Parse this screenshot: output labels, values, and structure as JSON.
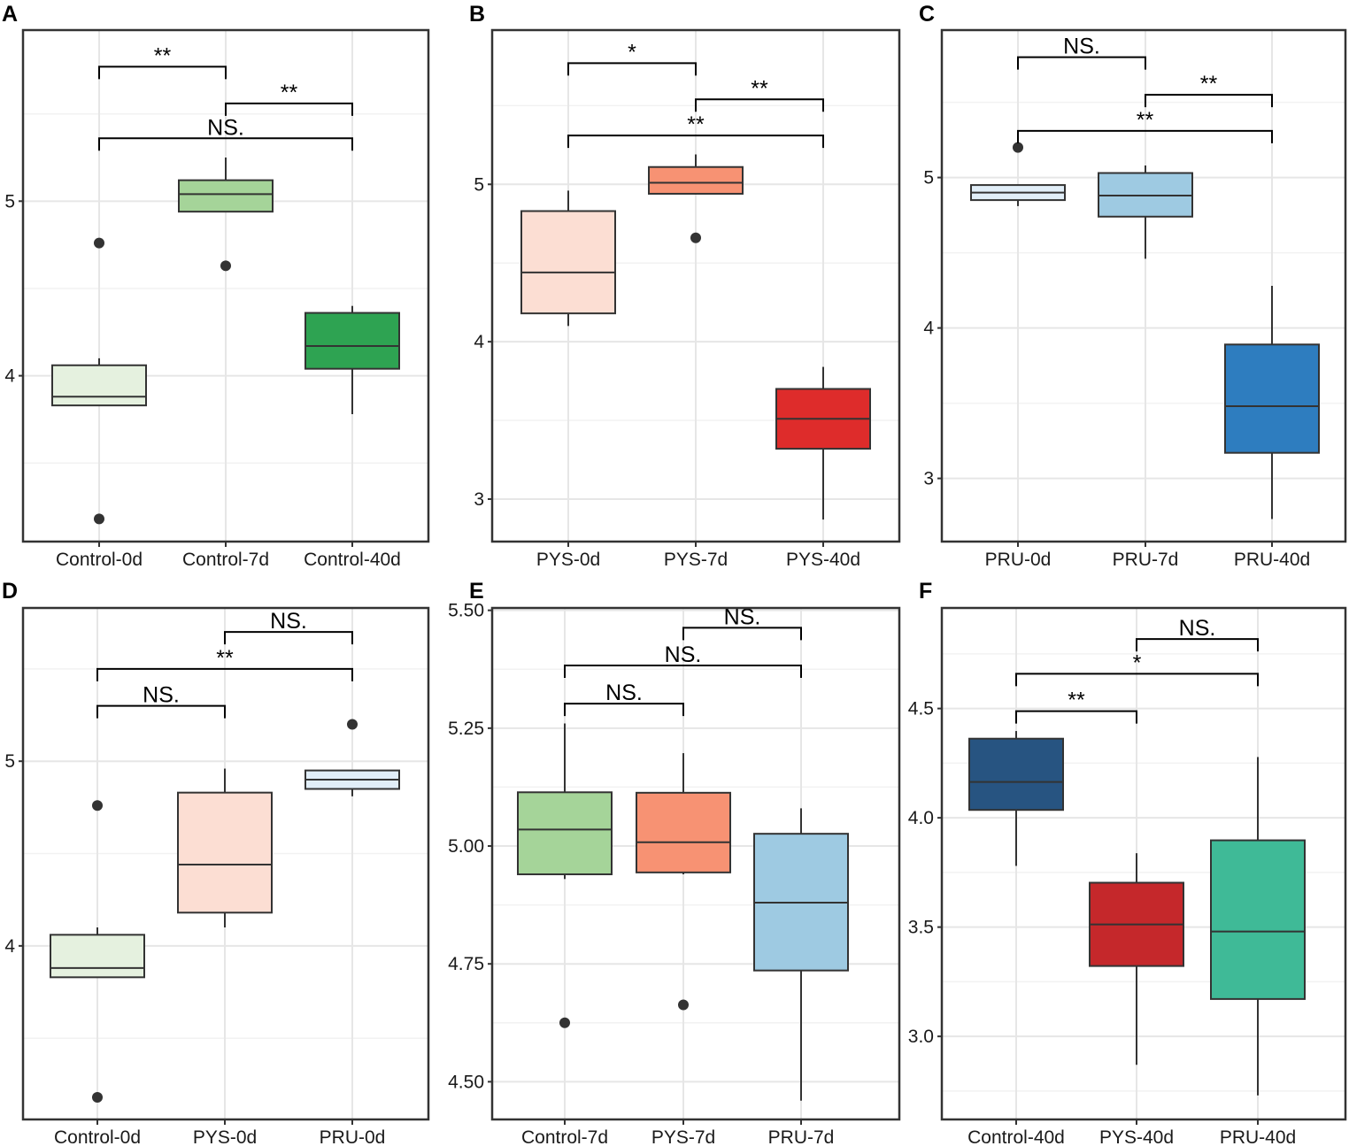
{
  "chart_data": [
    {
      "panel": "A",
      "type": "box",
      "categories": [
        "Control-0d",
        "Control-7d",
        "Control-40d"
      ],
      "colors": [
        "#e5f1df",
        "#a5d499",
        "#2ea352"
      ],
      "ylim": [
        3.05,
        5.98
      ],
      "yticks": [
        4,
        5
      ],
      "ytick_labels": [
        "4",
        "5"
      ],
      "boxes": [
        {
          "wlo": 3.85,
          "q1": 3.83,
          "median": 3.88,
          "q3": 4.06,
          "whi": 4.1,
          "outliers": [
            4.76,
            3.18
          ]
        },
        {
          "wlo": 4.94,
          "q1": 4.94,
          "median": 5.04,
          "q3": 5.12,
          "whi": 5.25,
          "outliers": [
            4.63
          ]
        },
        {
          "wlo": 3.78,
          "q1": 4.04,
          "median": 4.17,
          "q3": 4.36,
          "whi": 4.4,
          "outliers": []
        }
      ],
      "comparisons": [
        {
          "from": 0,
          "to": 1,
          "y": 5.77,
          "label": "**"
        },
        {
          "from": 1,
          "to": 2,
          "y": 5.56,
          "label": "**"
        },
        {
          "from": 0,
          "to": 2,
          "y": 5.36,
          "label": "NS."
        }
      ]
    },
    {
      "panel": "B",
      "type": "box",
      "categories": [
        "PYS-0d",
        "PYS-7d",
        "PYS-40d"
      ],
      "colors": [
        "#fcded3",
        "#f79273",
        "#de2c2b"
      ],
      "ylim": [
        2.73,
        5.98
      ],
      "yticks": [
        3,
        4,
        5
      ],
      "ytick_labels": [
        "3",
        "4",
        "5"
      ],
      "boxes": [
        {
          "wlo": 4.1,
          "q1": 4.18,
          "median": 4.44,
          "q3": 4.83,
          "whi": 4.96,
          "outliers": []
        },
        {
          "wlo": 4.94,
          "q1": 4.94,
          "median": 5.01,
          "q3": 5.11,
          "whi": 5.19,
          "outliers": [
            4.66
          ]
        },
        {
          "wlo": 2.87,
          "q1": 3.32,
          "median": 3.51,
          "q3": 3.7,
          "whi": 3.84,
          "outliers": []
        }
      ],
      "comparisons": [
        {
          "from": 0,
          "to": 1,
          "y": 5.77,
          "label": "*"
        },
        {
          "from": 1,
          "to": 2,
          "y": 5.54,
          "label": "**"
        },
        {
          "from": 0,
          "to": 2,
          "y": 5.31,
          "label": "**"
        }
      ]
    },
    {
      "panel": "C",
      "type": "box",
      "categories": [
        "PRU-0d",
        "PRU-7d",
        "PRU-40d"
      ],
      "colors": [
        "#e1eef8",
        "#9ecae2",
        "#2e7dbf"
      ],
      "ylim": [
        2.58,
        5.98
      ],
      "yticks": [
        3,
        4,
        5
      ],
      "ytick_labels": [
        "3",
        "4",
        "5"
      ],
      "boxes": [
        {
          "wlo": 4.81,
          "q1": 4.85,
          "median": 4.9,
          "q3": 4.95,
          "whi": 4.95,
          "outliers": [
            5.2
          ]
        },
        {
          "wlo": 4.46,
          "q1": 4.74,
          "median": 4.88,
          "q3": 5.03,
          "whi": 5.08,
          "outliers": []
        },
        {
          "wlo": 2.73,
          "q1": 3.17,
          "median": 3.48,
          "q3": 3.89,
          "whi": 4.28,
          "outliers": []
        }
      ],
      "comparisons": [
        {
          "from": 0,
          "to": 1,
          "y": 5.8,
          "label": "NS."
        },
        {
          "from": 1,
          "to": 2,
          "y": 5.55,
          "label": "**"
        },
        {
          "from": 0,
          "to": 2,
          "y": 5.31,
          "label": "**"
        }
      ]
    },
    {
      "panel": "D",
      "type": "box",
      "categories": [
        "Control-0d",
        "PYS-0d",
        "PRU-0d"
      ],
      "colors": [
        "#e5f1df",
        "#fcded3",
        "#e1eef8"
      ],
      "ylim": [
        3.06,
        5.83
      ],
      "yticks": [
        4,
        5
      ],
      "ytick_labels": [
        "4",
        "5"
      ],
      "boxes": [
        {
          "wlo": 3.85,
          "q1": 3.83,
          "median": 3.88,
          "q3": 4.06,
          "whi": 4.1,
          "outliers": [
            4.76,
            3.18
          ]
        },
        {
          "wlo": 4.1,
          "q1": 4.18,
          "median": 4.44,
          "q3": 4.83,
          "whi": 4.96,
          "outliers": []
        },
        {
          "wlo": 4.81,
          "q1": 4.85,
          "median": 4.9,
          "q3": 4.95,
          "whi": 4.95,
          "outliers": [
            5.2
          ]
        }
      ],
      "comparisons": [
        {
          "from": 1,
          "to": 2,
          "y": 5.7,
          "label": "NS."
        },
        {
          "from": 0,
          "to": 2,
          "y": 5.5,
          "label": "**"
        },
        {
          "from": 0,
          "to": 1,
          "y": 5.3,
          "label": "NS."
        }
      ]
    },
    {
      "panel": "E",
      "type": "box",
      "categories": [
        "Control-7d",
        "PYS-7d",
        "PRU-7d"
      ],
      "colors": [
        "#a5d499",
        "#f79273",
        "#9ecae2"
      ],
      "ylim": [
        4.42,
        5.505
      ],
      "yticks": [
        4.5,
        4.75,
        5.0,
        5.25,
        5.5
      ],
      "ytick_labels": [
        "4.50",
        "4.75",
        "5.00",
        "5.25",
        "5.50"
      ],
      "boxes": [
        {
          "wlo": 4.93,
          "q1": 4.94,
          "median": 5.035,
          "q3": 5.114,
          "whi": 5.26,
          "outliers": [
            4.625
          ]
        },
        {
          "wlo": 4.94,
          "q1": 4.944,
          "median": 5.008,
          "q3": 5.113,
          "whi": 5.197,
          "outliers": [
            4.663
          ]
        },
        {
          "wlo": 4.46,
          "q1": 4.736,
          "median": 4.88,
          "q3": 5.026,
          "whi": 5.08,
          "outliers": []
        }
      ],
      "comparisons": [
        {
          "from": 1,
          "to": 2,
          "y": 5.463,
          "label": "NS."
        },
        {
          "from": 0,
          "to": 2,
          "y": 5.383,
          "label": "NS."
        },
        {
          "from": 0,
          "to": 1,
          "y": 5.302,
          "label": "NS."
        }
      ]
    },
    {
      "panel": "F",
      "type": "box",
      "categories": [
        "Control-40d",
        "PYS-40d",
        "PRU-40d"
      ],
      "colors": [
        "#275481",
        "#c5282b",
        "#3fba97"
      ],
      "ylim": [
        2.62,
        4.96
      ],
      "yticks": [
        3.0,
        3.5,
        4.0,
        4.5
      ],
      "ytick_labels": [
        "3.0",
        "3.5",
        "4.0",
        "4.5"
      ],
      "boxes": [
        {
          "wlo": 3.78,
          "q1": 4.036,
          "median": 4.164,
          "q3": 4.362,
          "whi": 4.397,
          "outliers": []
        },
        {
          "wlo": 2.87,
          "q1": 3.322,
          "median": 3.512,
          "q3": 3.703,
          "whi": 3.838,
          "outliers": []
        },
        {
          "wlo": 2.73,
          "q1": 3.171,
          "median": 3.48,
          "q3": 3.897,
          "whi": 4.278,
          "outliers": []
        }
      ],
      "comparisons": [
        {
          "from": 1,
          "to": 2,
          "y": 4.818,
          "label": "NS."
        },
        {
          "from": 0,
          "to": 2,
          "y": 4.659,
          "label": "*"
        },
        {
          "from": 0,
          "to": 1,
          "y": 4.488,
          "label": "**"
        }
      ]
    }
  ]
}
